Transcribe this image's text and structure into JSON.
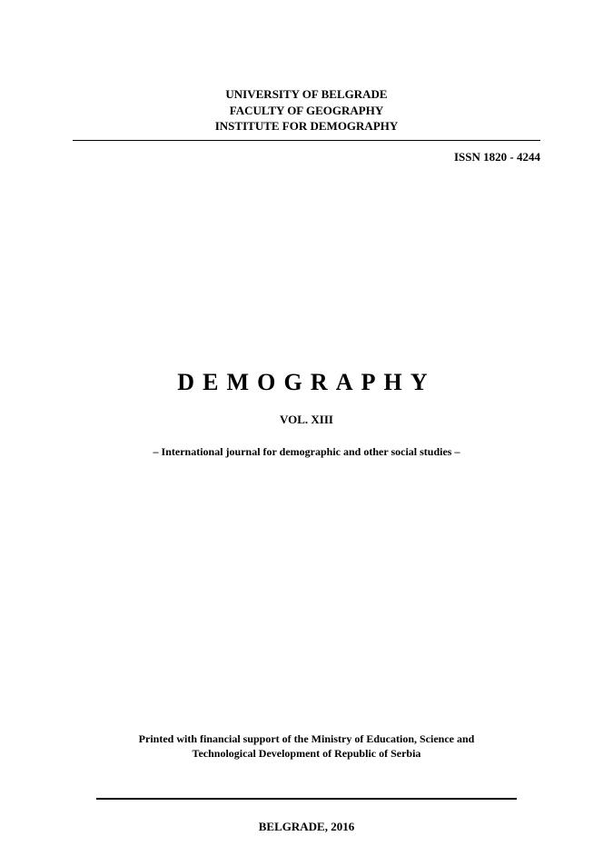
{
  "document": {
    "background_color": "#ffffff",
    "text_color": "#000000",
    "font_family": "Times New Roman",
    "header": {
      "line1": "UNIVERSITY OF BELGRADE",
      "line2": "FACULTY OF GEOGRAPHY",
      "line3": "INSTITUTE FOR DEMOGRAPHY",
      "fontsize": 13,
      "rule_width_pt": 1.5,
      "rule_color": "#000000"
    },
    "issn": {
      "label": "ISSN 1820 - 4244",
      "fontsize": 13
    },
    "title": {
      "text": "DEMOGRAPHY",
      "fontsize": 26,
      "letter_spacing_em": 0.35
    },
    "volume": {
      "text": "VOL. XIII",
      "fontsize": 13
    },
    "subtitle": {
      "text": "– International journal for demographic and other social studies –",
      "fontsize": 12
    },
    "support": {
      "line1": "Printed with financial support of the Ministry of Education, Science and",
      "line2": "Technological Development of Republic of Serbia",
      "fontsize": 12
    },
    "footer_rule": {
      "width_pt": 2,
      "color": "#000000"
    },
    "footer": {
      "text": "BELGRADE, 2016",
      "fontsize": 13
    }
  }
}
